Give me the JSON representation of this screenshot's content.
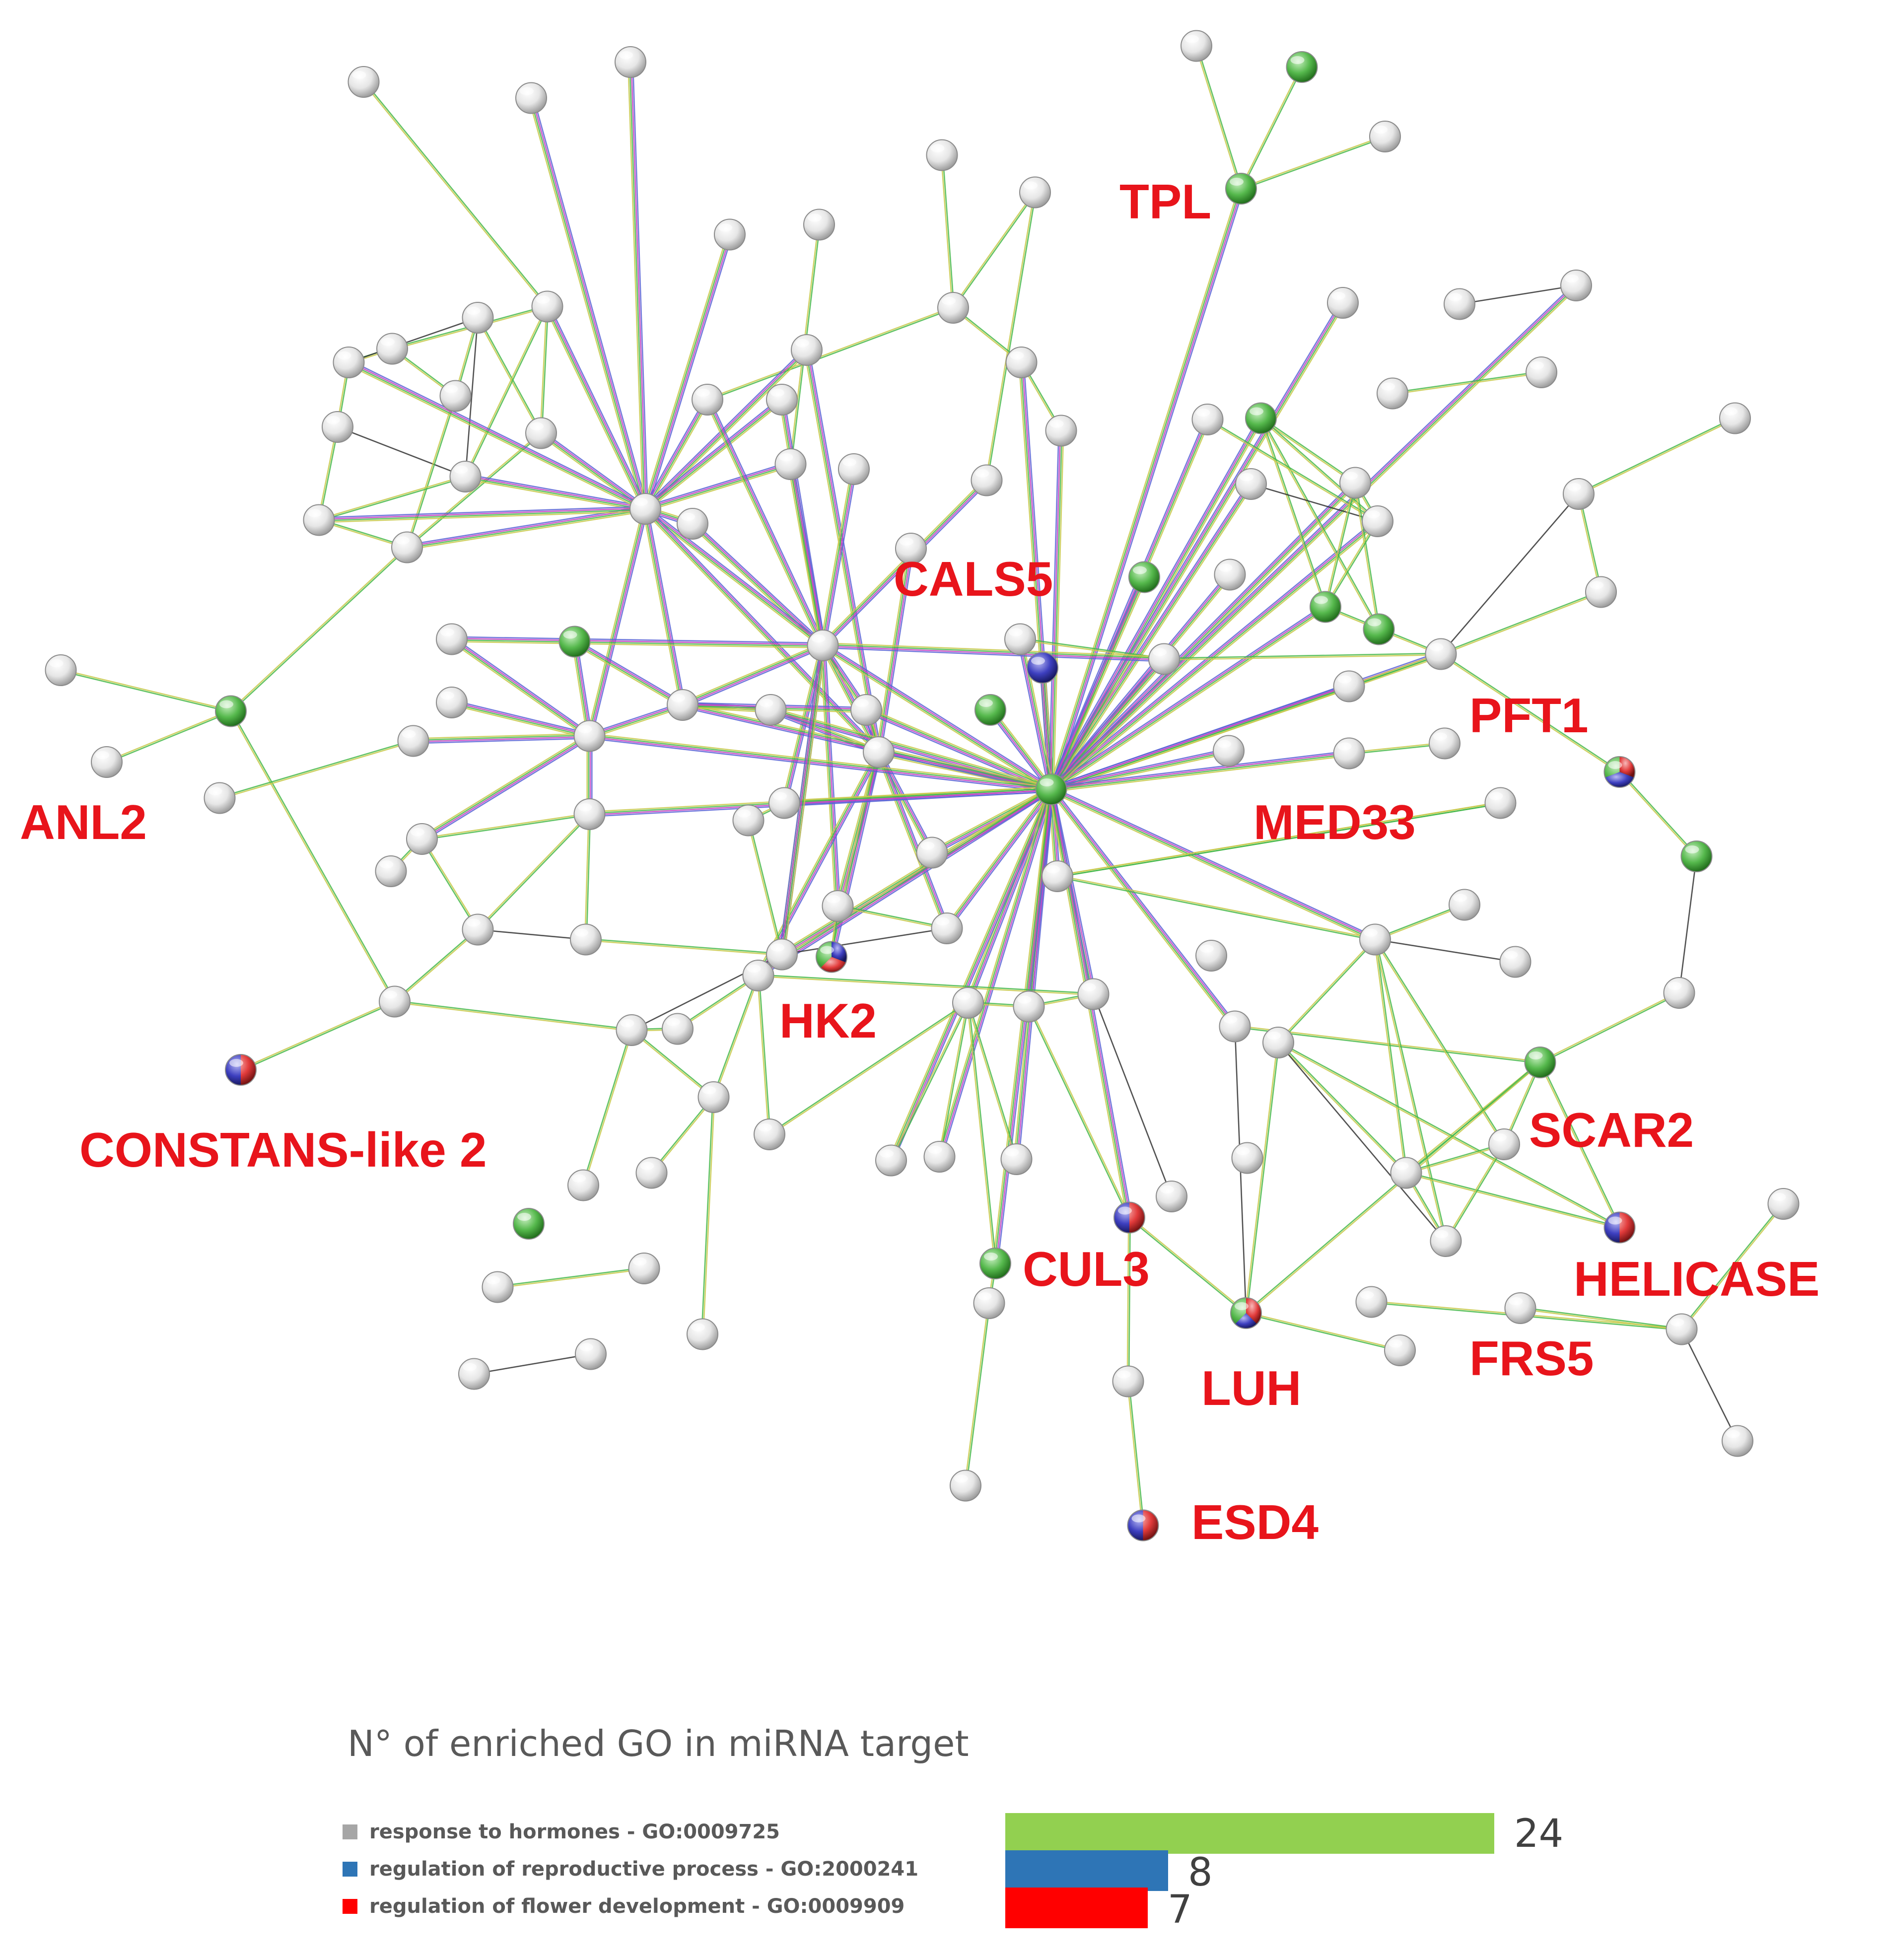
{
  "network": {
    "labels": {
      "tpl": "TPL",
      "cals5": "CALS5",
      "pft1": "PFT1",
      "anl2": "ANL2",
      "med33": "MED33",
      "hk2": "HK2",
      "constans_like_2": "CONSTANS-like 2",
      "scar2": "SCAR2",
      "cul3": "CUL3",
      "helicase": "HELICASE",
      "frs5": "FRS5",
      "luh": "LUH",
      "esd4": "ESD4"
    },
    "node_colors": {
      "default": "#e6e6e6",
      "hormones": "#55b84c",
      "reproductive": "#3d3fbf",
      "flower": "#e23b3b"
    }
  },
  "legend": {
    "title": "N° of enriched GO in miRNA target",
    "items": [
      {
        "label": "response to hormones - GO:0009725",
        "swatch": "#a6a6a6",
        "bar_color": "#92d050",
        "count": 24
      },
      {
        "label": "regulation of reproductive process - GO:2000241",
        "swatch": "#2e75b6",
        "bar_color": "#2e75b6",
        "count": 8
      },
      {
        "label": "regulation of flower development - GO:0009909",
        "swatch": "#ff0000",
        "bar_color": "#ff0000",
        "count": 7
      }
    ]
  }
}
